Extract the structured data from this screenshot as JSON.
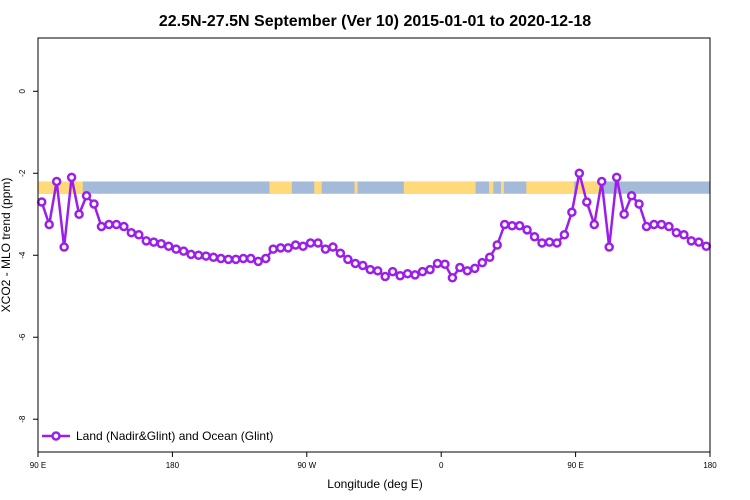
{
  "chart_data": {
    "type": "line",
    "title": "22.5N-27.5N September (Ver 10)   2015-01-01 to 2020-12-18",
    "xlabel": "Longitude (deg E)",
    "ylabel": "XCO2 - MLO trend (ppm)",
    "x_ticks": [
      {
        "value": 90,
        "label": "90 E"
      },
      {
        "value": 180,
        "label": "180"
      },
      {
        "value": 270,
        "label": "90 W"
      },
      {
        "value": 360,
        "label": "0"
      },
      {
        "value": 450,
        "label": "90 E"
      },
      {
        "value": 540,
        "label": "180"
      }
    ],
    "y_ticks": [
      {
        "value": 0,
        "label": "0"
      },
      {
        "value": -2,
        "label": "-2"
      },
      {
        "value": -4,
        "label": "-4"
      },
      {
        "value": -6,
        "label": "-6"
      },
      {
        "value": -8,
        "label": "-8"
      }
    ],
    "xlim": [
      90,
      540
    ],
    "ylim": [
      -8.8,
      1.3
    ],
    "legend": {
      "position": "bottom-left",
      "entries": [
        "Land (Nadir&Glint) and Ocean (Glint)"
      ]
    },
    "colors": {
      "series": "#9b1fe8",
      "ocean": "#a3bbd9",
      "land": "#ffd97a"
    },
    "surface_band": {
      "y_range": [
        -2.5,
        -2.2
      ],
      "segments": [
        {
          "type": "land",
          "x0": 90,
          "x1": 120
        },
        {
          "type": "land",
          "x0": 245,
          "x1": 260
        },
        {
          "type": "land",
          "x0": 275,
          "x1": 280
        },
        {
          "type": "land",
          "x0": 302,
          "x1": 304
        },
        {
          "type": "land",
          "x0": 335,
          "x1": 383
        },
        {
          "type": "land",
          "x0": 392,
          "x1": 395
        },
        {
          "type": "land",
          "x0": 400,
          "x1": 402
        },
        {
          "type": "land",
          "x0": 417,
          "x1": 449
        },
        {
          "type": "land",
          "x0": 451,
          "x1": 469
        }
      ]
    },
    "series": [
      {
        "name": "Land (Nadir&Glint) and Ocean (Glint)",
        "x": [
          92.5,
          97.5,
          102.5,
          107.5,
          112.5,
          117.5,
          122.5,
          127.5,
          132.5,
          137.5,
          142.5,
          147.5,
          152.5,
          157.5,
          162.5,
          167.5,
          172.5,
          177.5,
          182.5,
          187.5,
          192.5,
          197.5,
          202.5,
          207.5,
          212.5,
          217.5,
          222.5,
          227.5,
          232.5,
          237.5,
          242.5,
          247.5,
          252.5,
          257.5,
          262.5,
          267.5,
          272.5,
          277.5,
          282.5,
          287.5,
          292.5,
          297.5,
          302.5,
          307.5,
          312.5,
          317.5,
          322.5,
          327.5,
          332.5,
          337.5,
          342.5,
          347.5,
          352.5,
          357.5,
          362.5,
          367.5,
          372.5,
          377.5,
          382.5,
          387.5,
          392.5,
          397.5,
          402.5,
          407.5,
          412.5,
          417.5,
          422.5,
          427.5,
          432.5,
          437.5,
          442.5,
          447.5,
          452.5,
          457.5,
          462.5,
          467.5,
          472.5,
          477.5,
          482.5,
          487.5,
          492.5,
          497.5,
          502.5,
          507.5,
          512.5,
          517.5,
          522.5,
          527.5,
          532.5,
          537.5
        ],
        "y": [
          -2.7,
          -3.25,
          -2.2,
          -3.8,
          -2.1,
          -3.0,
          -2.55,
          -2.75,
          -3.3,
          -3.25,
          -3.25,
          -3.3,
          -3.45,
          -3.5,
          -3.65,
          -3.68,
          -3.72,
          -3.78,
          -3.85,
          -3.9,
          -3.98,
          -4.0,
          -4.02,
          -4.05,
          -4.08,
          -4.1,
          -4.1,
          -4.08,
          -4.08,
          -4.15,
          -4.08,
          -3.85,
          -3.82,
          -3.82,
          -3.75,
          -3.78,
          -3.7,
          -3.7,
          -3.85,
          -3.8,
          -3.95,
          -4.1,
          -4.2,
          -4.25,
          -4.35,
          -4.38,
          -4.52,
          -4.4,
          -4.5,
          -4.45,
          -4.48,
          -4.4,
          -4.35,
          -4.2,
          -4.22,
          -4.55,
          -4.3,
          -4.38,
          -4.32,
          -4.18,
          -4.05,
          -3.75,
          -3.25,
          -3.28,
          -3.28,
          -3.38,
          -3.55,
          -3.7,
          -3.68,
          -3.7,
          -3.5,
          -2.95,
          -2.0,
          -2.7,
          -3.25,
          -2.2,
          -3.8,
          -2.1,
          -3.0,
          -2.55,
          -2.75,
          -3.3,
          -3.25,
          -3.25,
          -3.3,
          -3.45,
          -3.5,
          -3.65,
          -3.68,
          -3.78
        ]
      }
    ]
  }
}
